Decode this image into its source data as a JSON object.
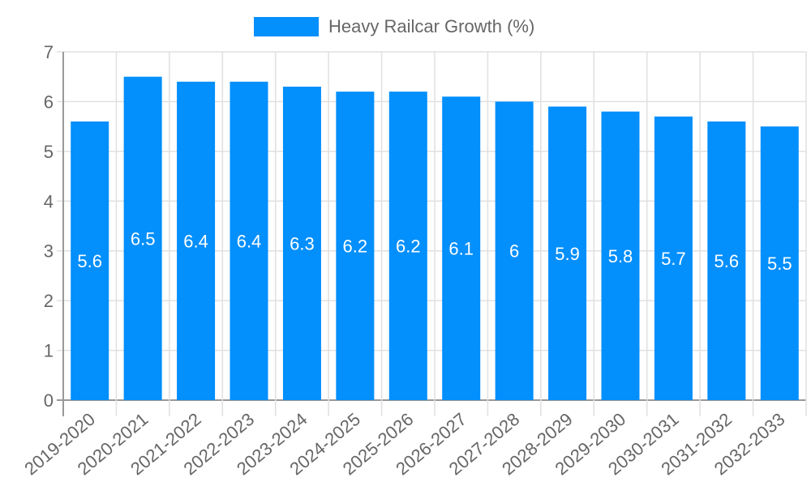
{
  "legend": {
    "label": "Heavy Railcar Growth (%)",
    "color": "#038ffc"
  },
  "chart_data": {
    "type": "bar",
    "title": "",
    "xlabel": "",
    "ylabel": "",
    "ylim": [
      0,
      7
    ],
    "yticks": [
      0,
      1,
      2,
      3,
      4,
      5,
      6,
      7
    ],
    "grid": true,
    "legend_position": "top",
    "categories": [
      "2019-2020",
      "2020-2021",
      "2021-2022",
      "2022-2023",
      "2023-2024",
      "2024-2025",
      "2025-2026",
      "2026-2027",
      "2027-2028",
      "2028-2029",
      "2029-2030",
      "2030-2031",
      "2031-2032",
      "2032-2033"
    ],
    "series": [
      {
        "name": "Heavy Railcar Growth (%)",
        "color": "#038ffc",
        "values": [
          5.6,
          6.5,
          6.4,
          6.4,
          6.3,
          6.2,
          6.2,
          6.1,
          6,
          5.9,
          5.8,
          5.7,
          5.6,
          5.5
        ]
      }
    ]
  }
}
